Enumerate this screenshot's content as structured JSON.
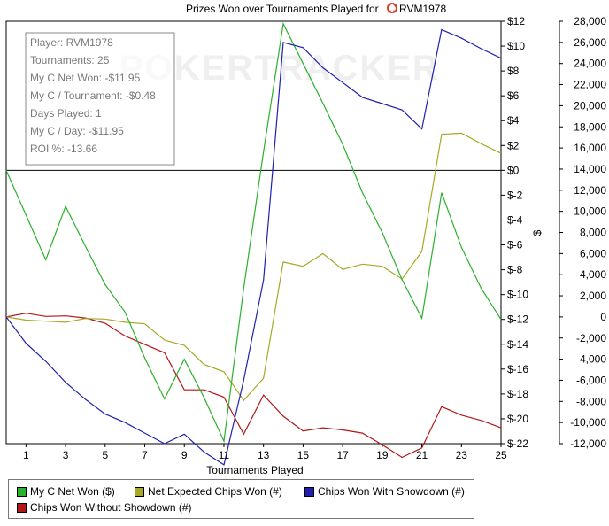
{
  "chart_data": {
    "type": "line",
    "title_prefix": "Prizes Won over Tournaments Played for",
    "player_name": "RVM1978",
    "title_icon": "spade-icon",
    "xlabel": "Tournaments Played",
    "ylabel_right": "$",
    "x": [
      0,
      1,
      2,
      3,
      4,
      5,
      6,
      7,
      8,
      9,
      10,
      11,
      12,
      13,
      14,
      15,
      16,
      17,
      18,
      19,
      20,
      21,
      22,
      23,
      24,
      25
    ],
    "xlim": [
      0,
      25
    ],
    "xticks": [
      "1",
      "3",
      "5",
      "7",
      "9",
      "11",
      "13",
      "15",
      "17",
      "19",
      "21",
      "23",
      "25"
    ],
    "xtick_values": [
      1,
      3,
      5,
      7,
      9,
      11,
      13,
      15,
      17,
      19,
      21,
      23,
      25
    ],
    "dollar_axis": {
      "ylim": [
        -22,
        12
      ],
      "tick_values": [
        12,
        10,
        8,
        6,
        4,
        2,
        0,
        -2,
        -4,
        -6,
        -8,
        -10,
        -12,
        -14,
        -16,
        -18,
        -20,
        -22
      ],
      "tick_labels": [
        "$12",
        "$10",
        "$8",
        "$6",
        "$4",
        "$2",
        "$0",
        "$-2",
        "$-4",
        "$-6",
        "$-8",
        "$-10",
        "$-12",
        "$-14",
        "$-16",
        "$-18",
        "$-20",
        "$-22"
      ]
    },
    "chips_axis": {
      "ylim": [
        -12000,
        28000
      ],
      "tick_values": [
        28000,
        26000,
        24000,
        22000,
        20000,
        18000,
        16000,
        14000,
        12000,
        10000,
        8000,
        6000,
        4000,
        2000,
        0,
        -2000,
        -4000,
        -6000,
        -8000,
        -10000,
        -12000
      ],
      "tick_labels": [
        "28,000",
        "26,000",
        "24,000",
        "22,000",
        "20,000",
        "18,000",
        "16,000",
        "14,000",
        "12,000",
        "10,000",
        "8,000",
        "6,000",
        "4,000",
        "2,000",
        "0",
        "-2,000",
        "-4,000",
        "-6,000",
        "-8,000",
        "-10,000",
        "-12,000"
      ]
    },
    "series": [
      {
        "name": "My C Net Won ($)",
        "color": "#2bb02b",
        "axis": "dollar",
        "values": [
          0,
          -3.6,
          -7.2,
          -2.9,
          -6.1,
          -9.2,
          -11.4,
          -15.1,
          -18.4,
          -15.2,
          -18.3,
          -21.8,
          -9.5,
          1.5,
          11.8,
          8.6,
          5.4,
          2.1,
          -1.8,
          -5.0,
          -8.8,
          -11.9,
          -1.8,
          -6.2,
          -9.5,
          -12.0
        ]
      },
      {
        "name": "Net Expected Chips Won (#)",
        "color": "#a8a828",
        "axis": "chips",
        "values": [
          0,
          -300,
          -400,
          -500,
          -150,
          -200,
          -500,
          -650,
          -2200,
          -2700,
          -4500,
          -5200,
          -7900,
          -5800,
          5200,
          4800,
          6000,
          4500,
          5000,
          4800,
          3600,
          6200,
          17300,
          17400,
          16400,
          15500
        ]
      },
      {
        "name": "Chips Won With Showdown (#)",
        "color": "#2020b0",
        "axis": "chips",
        "values": [
          0,
          -2500,
          -4200,
          -6200,
          -7800,
          -9200,
          -10000,
          -11000,
          -12000,
          -11100,
          -12800,
          -14000,
          -6000,
          3500,
          26000,
          25500,
          23600,
          22200,
          20800,
          20200,
          19600,
          17800,
          27200,
          26400,
          25400,
          24500
        ]
      },
      {
        "name": "Chips Won Without Showdown (#)",
        "color": "#b01818",
        "axis": "chips",
        "values": [
          0,
          350,
          50,
          100,
          -100,
          -600,
          -1800,
          -2600,
          -3400,
          -6900,
          -6900,
          -7600,
          -11100,
          -7400,
          -9400,
          -10800,
          -10500,
          -10700,
          -11000,
          -12100,
          -13300,
          -12400,
          -8500,
          -9300,
          -9800,
          -10500
        ]
      }
    ],
    "stats_box": [
      "Player: RVM1978",
      "Tournaments: 25",
      "My C Net Won: -$11.95",
      "My C / Tournament: -$0.48",
      "Days Played: 1",
      "My C / Day: -$11.95",
      "ROI %: -13.66"
    ],
    "watermark": "POKERTRACKER"
  }
}
